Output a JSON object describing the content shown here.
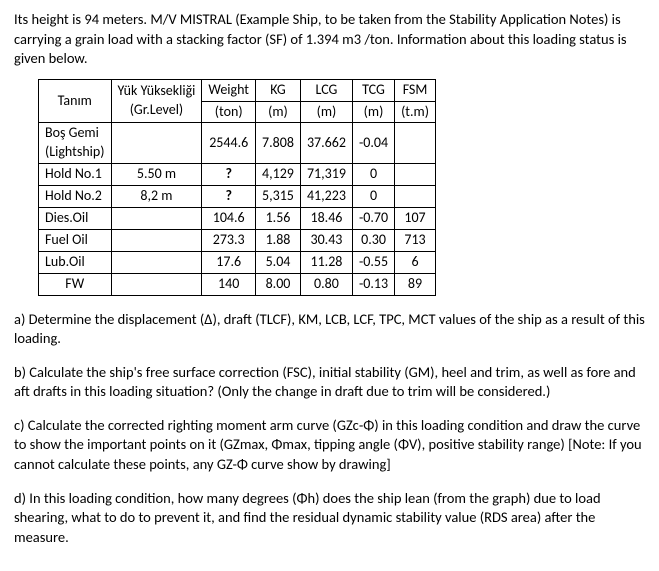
{
  "intro": "Its height is 94 meters. M/V MISTRAL (Example Ship, to be taken from the Stability Application Notes) is carrying a grain load with a stacking factor (SF) of 1.394 m3 /ton. Information about this loading status is given below.",
  "table": {
    "headers": [
      "Tanım",
      "Yük Yüksekliği (Gr.Level)",
      "Weight (ton)",
      "KG (m)",
      "LCG (m)",
      "TCG (m)",
      "FSM (t.m)"
    ],
    "rows": [
      [
        "Boş Gemi (Lightship)",
        "",
        "2544.6",
        "7.808",
        "37.662",
        "-0.04",
        ""
      ],
      [
        "Hold No.1",
        "5.50 m",
        "?",
        "4,129",
        "71,319",
        "0",
        ""
      ],
      [
        "Hold No.2",
        "8,2 m",
        "?",
        "5,315",
        "41,223",
        "0",
        ""
      ],
      [
        "Dies.Oil",
        "",
        "104.6",
        "1.56",
        "18.46",
        "-0.70",
        "107"
      ],
      [
        "Fuel Oil",
        "",
        "273.3",
        "1.88",
        "30.43",
        "0.30",
        "713"
      ],
      [
        "Lub.Oil",
        "",
        "17.6",
        "5.04",
        "11.28",
        "-0.55",
        "6"
      ],
      [
        "FW",
        "",
        "140",
        "8.00",
        "0.80",
        "-0.13",
        "89"
      ]
    ]
  },
  "qa": "a) Determine the displacement (Δ), draft (TLCF), KM, LCB, LCF, TPC, MCT values of the ship as a result of this loading.",
  "qb": "b) Calculate the ship's free surface correction (FSC), initial stability (GM), heel and trim, as well as fore and aft drafts in this loading situation? (Only the change in draft due to trim will be considered.)",
  "qc": "c) Calculate the corrected righting moment arm curve (GZc-Φ) in this loading condition and draw the curve to show the important points on it (GZmax, Φmax, tipping angle (ΦV), positive stability range) [Note: If you cannot calculate these points, any GZ-Φ curve show by drawing]",
  "qd": "d) In this loading condition, how many degrees (Φh) does the ship lean (from the graph) due to load shearing, what to do to prevent it, and find the residual dynamic stability value (RDS area) after the measure."
}
